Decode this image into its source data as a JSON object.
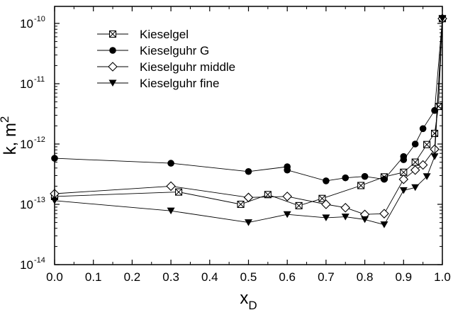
{
  "chart_data": {
    "type": "scatter",
    "xlabel": {
      "base": "x",
      "sub": "D"
    },
    "ylabel": {
      "base": "k, m",
      "sup": "2"
    },
    "xlim": [
      0.0,
      1.0
    ],
    "ylim": [
      1e-14,
      2e-10
    ],
    "yscale": "log",
    "grid": false,
    "legend_position": "top-left",
    "x_ticks": [
      "0.0",
      "0.1",
      "0.2",
      "0.3",
      "0.4",
      "0.5",
      "0.6",
      "0.7",
      "0.8",
      "0.9",
      "1.0"
    ],
    "y_ticks": [
      {
        "value": 1e-14,
        "base": "10",
        "exp": "-14"
      },
      {
        "value": 1e-13,
        "base": "10",
        "exp": "-13"
      },
      {
        "value": 1e-12,
        "base": "10",
        "exp": "-12"
      },
      {
        "value": 1e-11,
        "base": "10",
        "exp": "-11"
      },
      {
        "value": 1e-10,
        "base": "10",
        "exp": "-10"
      }
    ],
    "series": [
      {
        "name": "Kieselgel",
        "marker": "boxed-x",
        "x": [
          0.0,
          0.32,
          0.48,
          0.55,
          0.63,
          0.69,
          0.79,
          0.85,
          0.9,
          0.93,
          0.96,
          0.98,
          0.99,
          1.0
        ],
        "y": [
          1.35e-13,
          1.6e-13,
          1e-13,
          1.45e-13,
          9.5e-14,
          1.25e-13,
          2.05e-13,
          2.85e-13,
          3.4e-13,
          5e-13,
          9.8e-13,
          1.5e-12,
          4.2e-12,
          1.2e-10
        ]
      },
      {
        "name": "Kieselguhr G",
        "marker": "filled-circle",
        "x": [
          0.0,
          0.3,
          0.5,
          0.6,
          0.6,
          0.7,
          0.75,
          0.8,
          0.85,
          0.9,
          0.9,
          0.93,
          0.95,
          0.98,
          1.0
        ],
        "y": [
          5.8e-13,
          4.8e-13,
          3.5e-13,
          4.2e-13,
          3.7e-13,
          2.45e-13,
          2.75e-13,
          2.9e-13,
          2.6e-13,
          6.2e-13,
          5.5e-13,
          1e-12,
          1.8e-12,
          3.6e-12,
          1.2e-10
        ]
      },
      {
        "name": "Kieselguhr middle",
        "marker": "open-diamond",
        "x": [
          0.0,
          0.3,
          0.5,
          0.6,
          0.7,
          0.75,
          0.8,
          0.85,
          0.9,
          0.93,
          0.95,
          0.98,
          1.0
        ],
        "y": [
          1.5e-13,
          2e-13,
          1.3e-13,
          1.35e-13,
          1e-13,
          8.8e-14,
          6.8e-14,
          7e-14,
          2.6e-13,
          3.7e-13,
          4.5e-13,
          8.2e-13,
          1.2e-10
        ]
      },
      {
        "name": "Kieselguhr fine",
        "marker": "filled-triangle-down",
        "x": [
          0.0,
          0.3,
          0.5,
          0.6,
          0.7,
          0.75,
          0.8,
          0.85,
          0.9,
          0.93,
          0.96,
          0.98,
          1.0
        ],
        "y": [
          1.15e-13,
          7.8e-14,
          5e-14,
          6.8e-14,
          6e-14,
          6.2e-14,
          5.6e-14,
          4.6e-14,
          1.7e-13,
          1.9e-13,
          2.9e-13,
          6.2e-13,
          1.2e-10
        ]
      }
    ]
  }
}
